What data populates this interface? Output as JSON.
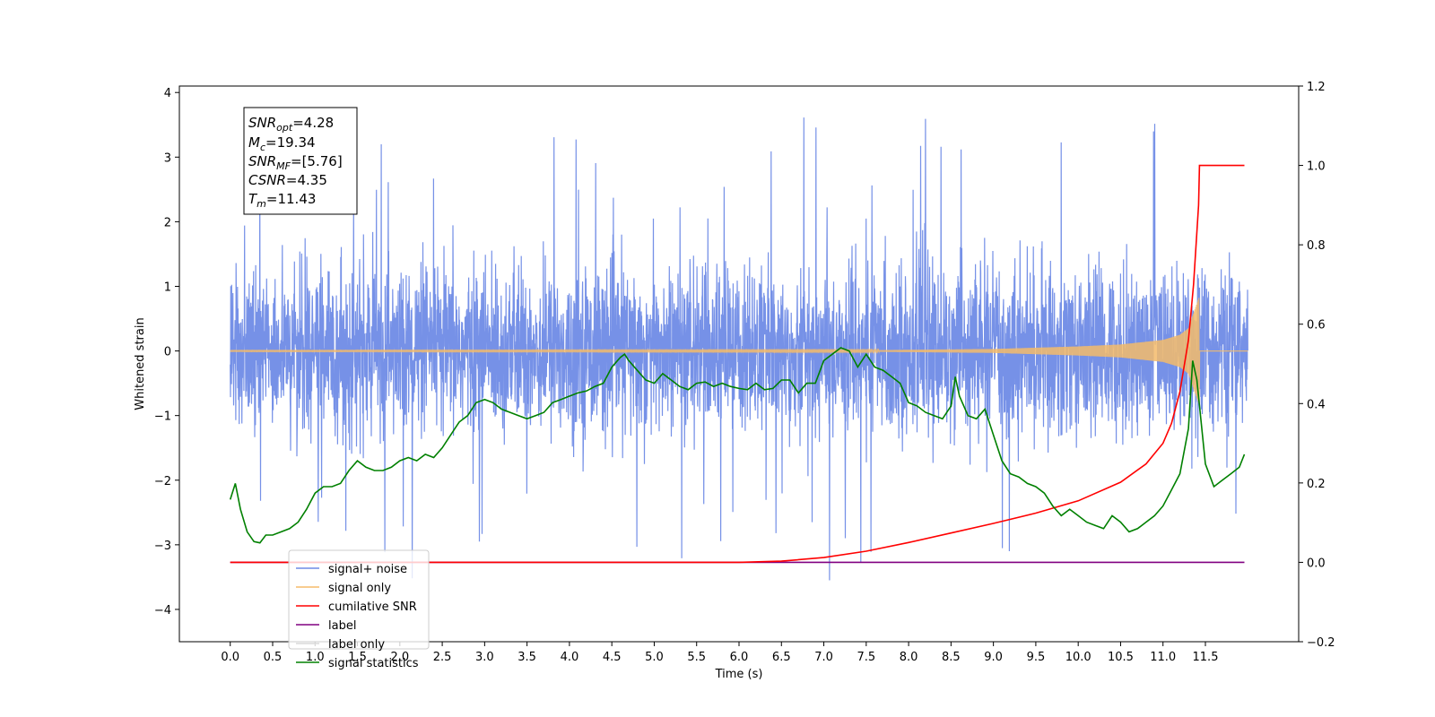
{
  "chart_data": {
    "type": "line",
    "xlabel": "Time (s)",
    "ylabel_left": "Whitened strain",
    "xlim": [
      -0.6,
      12.6
    ],
    "ylim_left": [
      -4.5,
      4.1
    ],
    "ylim_right": [
      -0.2,
      1.2
    ],
    "x_ticks": [
      "0.0",
      "0.5",
      "1.0",
      "1.5",
      "2.0",
      "2.5",
      "3.0",
      "3.5",
      "4.0",
      "4.5",
      "5.0",
      "5.5",
      "6.0",
      "6.5",
      "7.0",
      "7.5",
      "8.0",
      "8.5",
      "9.0",
      "9.5",
      "10.0",
      "10.5",
      "11.0",
      "11.5"
    ],
    "y_ticks_left": [
      "−4",
      "−3",
      "−2",
      "−1",
      "0",
      "1",
      "2",
      "3",
      "4"
    ],
    "y_ticks_right": [
      "−0.2",
      "0.0",
      "0.2",
      "0.4",
      "0.6",
      "0.8",
      "1.0",
      "1.2"
    ],
    "grid": false,
    "legend_position": "lower-left",
    "annotation": {
      "snr_opt": "=4.28",
      "mc": "=19.34",
      "snr_mf": "=[5.76]",
      "csnr": "=4.35",
      "tm": "=11.43"
    },
    "series": [
      {
        "name": "signal+ noise",
        "axis": "left",
        "color": "#6f8be6",
        "style": "dense noise, amplitude about ±1.4 with spikes to about ±3.7",
        "x_range": [
          0.0,
          12.0
        ]
      },
      {
        "name": "signal only",
        "axis": "left",
        "color": "#f5bb6a",
        "style": "chirp growing in amplitude toward merger, ending at 11.43",
        "x_range": [
          0.0,
          12.0
        ],
        "envelope": {
          "x": [
            0.0,
            7.5,
            9.0,
            10.0,
            10.5,
            11.0,
            11.2,
            11.3,
            11.43
          ],
          "amp": [
            0.005,
            0.01,
            0.03,
            0.07,
            0.1,
            0.17,
            0.25,
            0.35,
            0.85
          ]
        }
      },
      {
        "name": "cumilative SNR",
        "axis": "right",
        "color": "#ff0000",
        "x": [
          0.0,
          6.0,
          6.5,
          7.0,
          7.5,
          8.0,
          8.5,
          9.0,
          9.5,
          10.0,
          10.5,
          10.8,
          11.0,
          11.1,
          11.2,
          11.3,
          11.36,
          11.42,
          11.43,
          11.5,
          11.96
        ],
        "y": [
          0.0,
          0.0,
          0.003,
          0.012,
          0.028,
          0.05,
          0.074,
          0.098,
          0.124,
          0.155,
          0.202,
          0.248,
          0.3,
          0.35,
          0.43,
          0.56,
          0.7,
          0.9,
          1.0,
          1.0,
          1.0
        ]
      },
      {
        "name": "label",
        "axis": "right",
        "color": "#800080",
        "x": [
          0.0,
          11.96
        ],
        "y": [
          0.0,
          0.0
        ]
      },
      {
        "name": "label only",
        "axis": "right",
        "color": "#d8d8d8",
        "x": [],
        "y": []
      },
      {
        "name": "signal statistics",
        "axis": "left",
        "color": "#008000",
        "x": [
          0.0,
          0.06,
          0.12,
          0.2,
          0.28,
          0.35,
          0.42,
          0.5,
          0.6,
          0.7,
          0.8,
          0.9,
          1.0,
          1.1,
          1.2,
          1.3,
          1.4,
          1.5,
          1.6,
          1.7,
          1.8,
          1.9,
          2.0,
          2.1,
          2.2,
          2.3,
          2.4,
          2.5,
          2.6,
          2.7,
          2.8,
          2.9,
          3.0,
          3.1,
          3.2,
          3.3,
          3.4,
          3.5,
          3.6,
          3.7,
          3.8,
          3.9,
          4.0,
          4.1,
          4.2,
          4.3,
          4.4,
          4.5,
          4.6,
          4.65,
          4.7,
          4.8,
          4.9,
          5.0,
          5.1,
          5.2,
          5.3,
          5.4,
          5.5,
          5.6,
          5.7,
          5.8,
          5.9,
          6.0,
          6.1,
          6.2,
          6.3,
          6.4,
          6.5,
          6.6,
          6.7,
          6.8,
          6.9,
          7.0,
          7.1,
          7.2,
          7.3,
          7.4,
          7.5,
          7.6,
          7.7,
          7.8,
          7.9,
          8.0,
          8.1,
          8.2,
          8.3,
          8.4,
          8.5,
          8.55,
          8.6,
          8.7,
          8.8,
          8.9,
          9.0,
          9.1,
          9.2,
          9.3,
          9.4,
          9.5,
          9.6,
          9.7,
          9.8,
          9.9,
          10.0,
          10.1,
          10.2,
          10.3,
          10.4,
          10.5,
          10.6,
          10.7,
          10.8,
          10.9,
          11.0,
          11.1,
          11.2,
          11.3,
          11.35,
          11.4,
          11.5,
          11.6,
          11.7,
          11.8,
          11.9,
          11.96
        ],
        "y": [
          -2.3,
          -2.05,
          -2.45,
          -2.8,
          -2.95,
          -2.97,
          -2.85,
          -2.85,
          -2.8,
          -2.75,
          -2.65,
          -2.45,
          -2.2,
          -2.1,
          -2.1,
          -2.05,
          -1.85,
          -1.7,
          -1.8,
          -1.85,
          -1.85,
          -1.8,
          -1.7,
          -1.65,
          -1.7,
          -1.6,
          -1.65,
          -1.5,
          -1.3,
          -1.1,
          -1.0,
          -0.8,
          -0.75,
          -0.8,
          -0.9,
          -0.95,
          -1.0,
          -1.05,
          -1.0,
          -0.95,
          -0.8,
          -0.75,
          -0.7,
          -0.65,
          -0.62,
          -0.55,
          -0.5,
          -0.25,
          -0.1,
          -0.05,
          -0.15,
          -0.3,
          -0.45,
          -0.5,
          -0.35,
          -0.45,
          -0.55,
          -0.6,
          -0.5,
          -0.48,
          -0.55,
          -0.5,
          -0.55,
          -0.58,
          -0.6,
          -0.5,
          -0.6,
          -0.58,
          -0.45,
          -0.45,
          -0.65,
          -0.5,
          -0.5,
          -0.15,
          -0.05,
          0.05,
          0.0,
          -0.25,
          -0.05,
          -0.25,
          -0.3,
          -0.4,
          -0.5,
          -0.8,
          -0.85,
          -0.95,
          -1.0,
          -1.05,
          -0.85,
          -0.4,
          -0.7,
          -1.0,
          -1.05,
          -0.9,
          -1.3,
          -1.7,
          -1.9,
          -1.95,
          -2.05,
          -2.1,
          -2.2,
          -2.4,
          -2.55,
          -2.45,
          -2.55,
          -2.65,
          -2.7,
          -2.75,
          -2.55,
          -2.65,
          -2.8,
          -2.75,
          -2.65,
          -2.55,
          -2.4,
          -2.15,
          -1.9,
          -1.2,
          -0.15,
          -0.45,
          -1.75,
          -2.1,
          -2.0,
          -1.9,
          -1.8,
          -1.6
        ]
      }
    ]
  }
}
